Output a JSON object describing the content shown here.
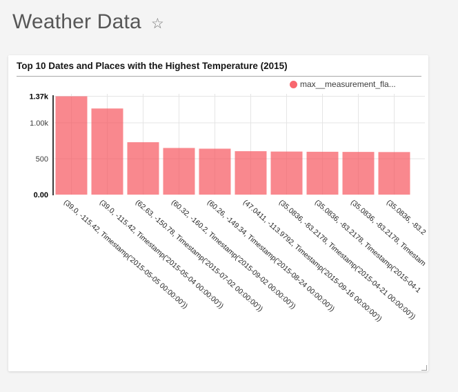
{
  "page": {
    "title": "Weather Data"
  },
  "header": {
    "favorite_icon_glyph": "☆"
  },
  "card": {
    "legend": {
      "label": "max__measurement_fla...",
      "swatch_color": "#f8676e"
    }
  },
  "chart_data": {
    "type": "bar",
    "title": "Top 10 Dates and Places with the Highest Temperature (2015)",
    "series": [
      {
        "name": "max__measurement_fla...",
        "values": [
          1370,
          1200,
          730,
          650,
          640,
          605,
          600,
          597,
          595,
          593
        ]
      }
    ],
    "categories": [
      "(39.0, -115.42, Timestamp('2015-05-05 00:00:00'))",
      "(39.0, -115.42, Timestamp('2015-05-04 00:00:00'))",
      "(62.63, -150.78, Timestamp('2015-07-02 00:00:00'))",
      "(60.32, -160.2, Timestamp('2015-09-02 00:00:00'))",
      "(60.26, -149.34, Timestamp('2015-08-24 00:00:00'))",
      "(47.0411, -113.9792, Timestamp('2015-09-16 00:00:00'))",
      "(35.0836, -83.2178, Timestamp('2015-04-21 00:00:00'))",
      "(35.0836, -83.2178, Timestamp('2015-04-1",
      "(35.0836, -83.2178, Timestam",
      "(35.0836, -83.2"
    ],
    "xlabel": "",
    "ylabel": "",
    "ylim": [
      0,
      1370
    ],
    "yticks": [
      {
        "label": "0.00",
        "value": 0,
        "bold": true
      },
      {
        "label": "500",
        "value": 500,
        "bold": false
      },
      {
        "label": "1.00k",
        "value": 1000,
        "bold": false
      },
      {
        "label": "1.37k",
        "value": 1370,
        "bold": true
      }
    ],
    "grid": true,
    "legend_position": "top-right",
    "bar_fill": "rgba(247,85,94,0.7)",
    "accent_color": "#f8676e",
    "gridline_color": "#e5e5e5",
    "axis_line_color": "#3a3a3a",
    "tick_label_color": "#3d3d3d",
    "tick_label_bold_color": "#000000",
    "x_label_color": "#262626",
    "x_label_rotation_deg": 41
  }
}
